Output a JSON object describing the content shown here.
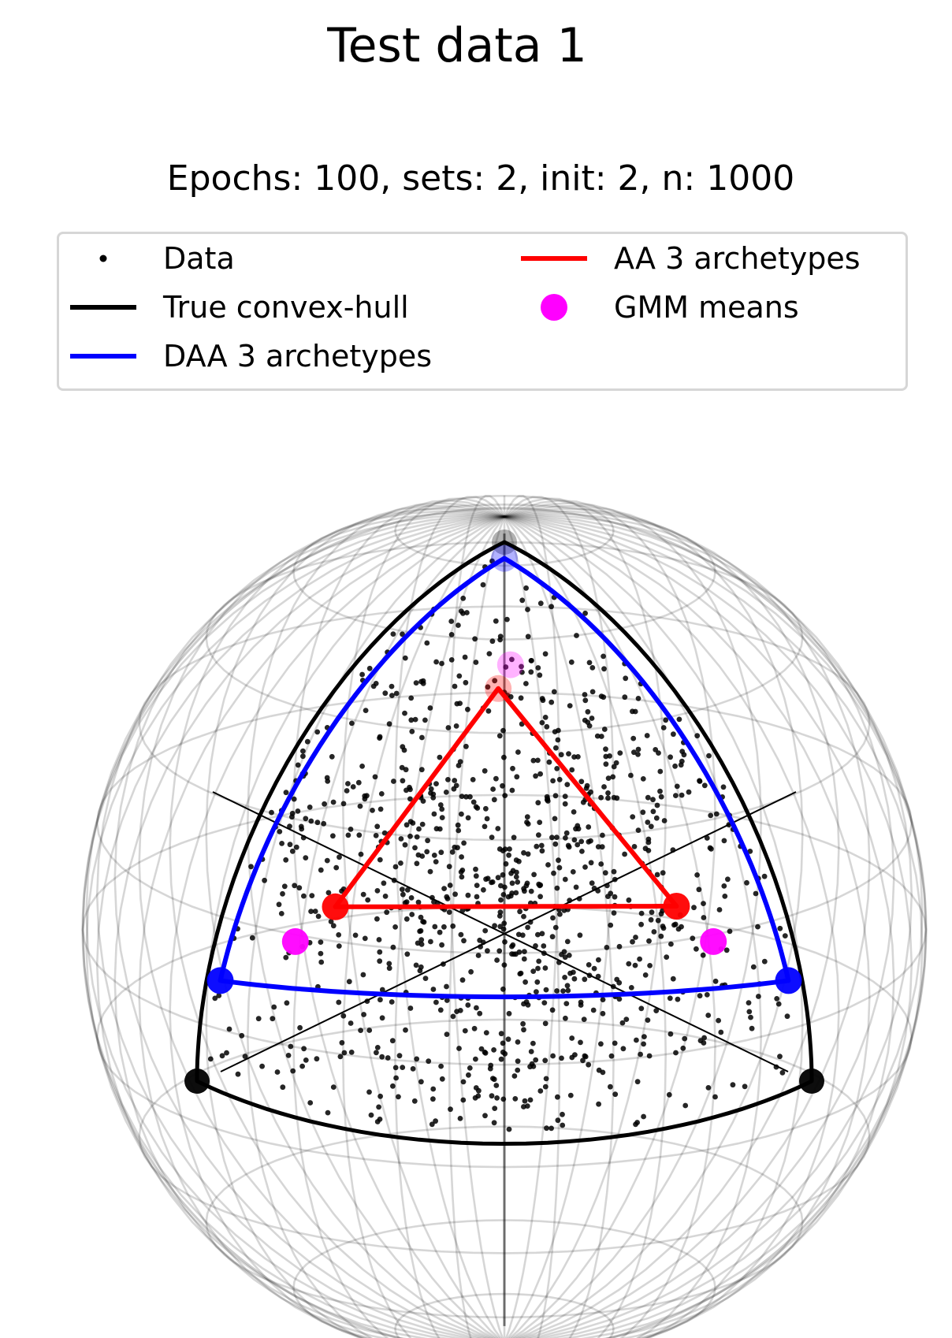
{
  "chart_data": {
    "type": "scatter",
    "title": "Test data 1",
    "subtitle": "Epochs: 100, sets: 2, init: 2, n: 1000",
    "projection": "3D unit sphere, wireframe view",
    "data_points_count": 1000,
    "legend": {
      "placement": "top",
      "entries": [
        {
          "label": "Data",
          "marker": "dot",
          "color": "#000000"
        },
        {
          "label": "True convex-hull",
          "marker": "line",
          "color": "#000000"
        },
        {
          "label": "DAA 3 archetypes",
          "marker": "line",
          "color": "#0000ff"
        },
        {
          "label": "AA 3 archetypes",
          "marker": "line",
          "color": "#ff0000"
        },
        {
          "label": "GMM means",
          "marker": "circle",
          "color": "#ff00ff"
        }
      ]
    },
    "series": [
      {
        "name": "True convex-hull",
        "vertices": [
          [
            0,
            0,
            1
          ],
          [
            1,
            0,
            0
          ],
          [
            0,
            1,
            0
          ]
        ]
      },
      {
        "name": "DAA 3 archetypes",
        "vertices": [
          [
            0.05,
            0.05,
            0.99
          ],
          [
            0.96,
            0.04,
            0.26
          ],
          [
            0.04,
            0.96,
            0.26
          ]
        ]
      },
      {
        "name": "AA 3 archetypes",
        "vertices": [
          [
            0.32,
            0.34,
            0.88
          ],
          [
            0.74,
            0.18,
            0.42
          ],
          [
            0.2,
            0.75,
            0.43
          ]
        ]
      },
      {
        "name": "GMM means",
        "vertices": [
          [
            0.3,
            0.28,
            0.91
          ],
          [
            0.84,
            0.16,
            0.36
          ],
          [
            0.16,
            0.84,
            0.36
          ]
        ]
      }
    ],
    "grid": true
  }
}
